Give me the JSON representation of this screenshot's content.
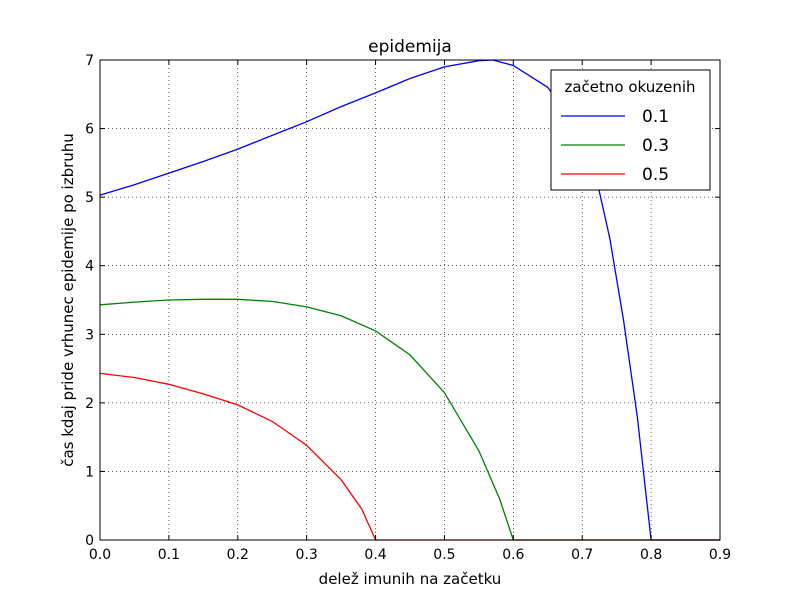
{
  "chart_data": {
    "type": "line",
    "title": "epidemija",
    "xlabel": "delež imunih na začetku",
    "ylabel": "čas kdaj pride vrhunec epidemije po izbruhu",
    "xlim": [
      0,
      0.9
    ],
    "ylim": [
      0,
      7
    ],
    "xticks": [
      "0.0",
      "0.1",
      "0.2",
      "0.3",
      "0.4",
      "0.5",
      "0.6",
      "0.7",
      "0.8",
      "0.9"
    ],
    "yticks": [
      "0",
      "1",
      "2",
      "3",
      "4",
      "5",
      "6",
      "7"
    ],
    "grid": true,
    "legend": {
      "title": "začetno okuzenih",
      "placement": "top-right"
    },
    "series": [
      {
        "name": "0.1",
        "color": "#0000ff",
        "x": [
          0,
          0.05,
          0.1,
          0.15,
          0.2,
          0.25,
          0.3,
          0.35,
          0.4,
          0.45,
          0.5,
          0.55,
          0.57,
          0.6,
          0.65,
          0.7,
          0.72,
          0.74,
          0.76,
          0.78,
          0.8,
          0.9
        ],
        "y": [
          5.03,
          5.18,
          5.35,
          5.52,
          5.7,
          5.9,
          6.1,
          6.32,
          6.52,
          6.73,
          6.9,
          6.99,
          7.0,
          6.92,
          6.6,
          5.9,
          5.3,
          4.4,
          3.2,
          1.8,
          0,
          0
        ]
      },
      {
        "name": "0.3",
        "color": "#008000",
        "x": [
          0,
          0.05,
          0.1,
          0.15,
          0.2,
          0.25,
          0.3,
          0.35,
          0.4,
          0.45,
          0.5,
          0.55,
          0.58,
          0.6,
          0.9
        ],
        "y": [
          3.43,
          3.47,
          3.5,
          3.51,
          3.51,
          3.48,
          3.4,
          3.27,
          3.05,
          2.7,
          2.15,
          1.3,
          0.6,
          0,
          0
        ]
      },
      {
        "name": "0.5",
        "color": "#ff0000",
        "x": [
          0,
          0.05,
          0.1,
          0.15,
          0.2,
          0.25,
          0.3,
          0.35,
          0.38,
          0.4,
          0.9
        ],
        "y": [
          2.43,
          2.37,
          2.27,
          2.13,
          1.97,
          1.73,
          1.38,
          0.88,
          0.45,
          0,
          0
        ]
      }
    ]
  }
}
